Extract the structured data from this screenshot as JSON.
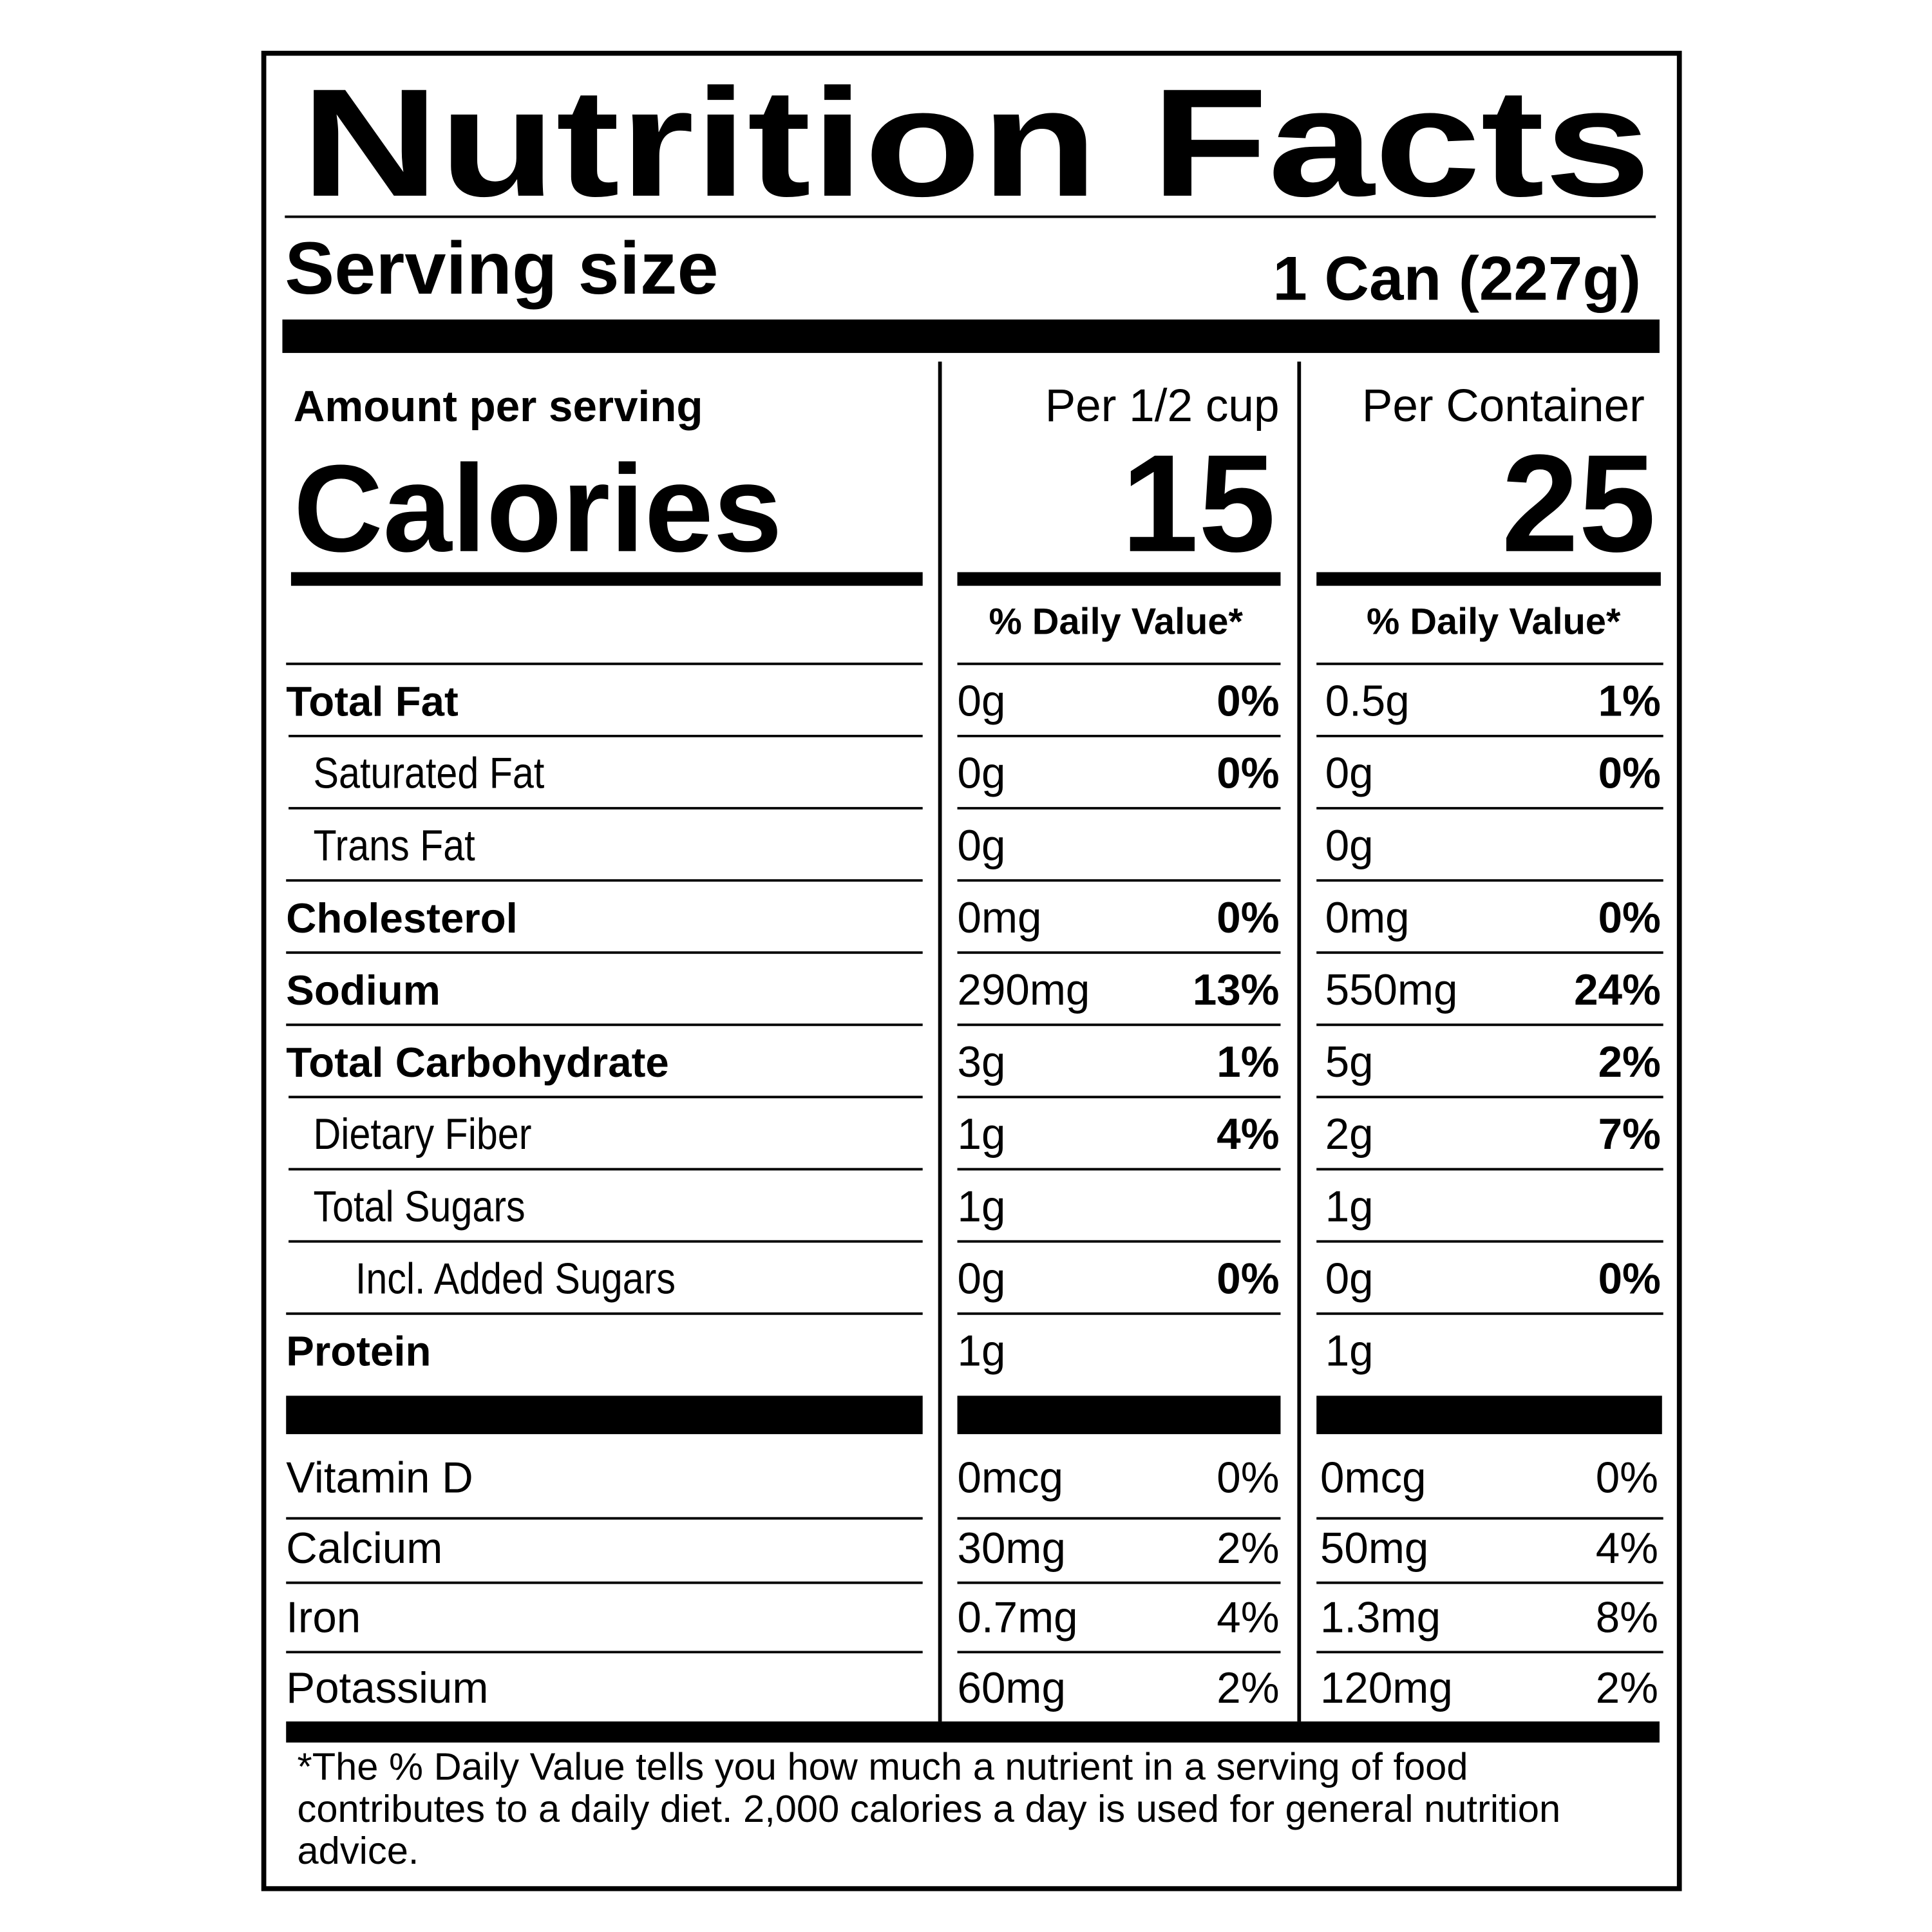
{
  "title": "Nutrition Facts",
  "serving": {
    "label": "Serving size",
    "value": "1 Can (227g)"
  },
  "amount_label": "Amount per serving",
  "calories": {
    "label": "Calories",
    "columns": [
      {
        "header": "Per 1/2 cup",
        "value": "15",
        "dv_header": "% Daily Value*"
      },
      {
        "header": "Per Container",
        "value": "25",
        "dv_header": "% Daily Value*"
      }
    ]
  },
  "nutrients": [
    {
      "name": "Total Fat",
      "level": 0,
      "cells": [
        [
          "0g",
          "0%"
        ],
        [
          "0.5g",
          "1%"
        ]
      ]
    },
    {
      "name": "Saturated Fat",
      "level": 1,
      "cells": [
        [
          "0g",
          "0%"
        ],
        [
          "0g",
          "0%"
        ]
      ]
    },
    {
      "name": "Trans Fat",
      "level": 1,
      "cells": [
        [
          "0g",
          null
        ],
        [
          "0g",
          null
        ]
      ]
    },
    {
      "name": "Cholesterol",
      "level": 0,
      "cells": [
        [
          "0mg",
          "0%"
        ],
        [
          "0mg",
          "0%"
        ]
      ]
    },
    {
      "name": "Sodium",
      "level": 0,
      "cells": [
        [
          "290mg",
          "13%"
        ],
        [
          "550mg",
          "24%"
        ]
      ]
    },
    {
      "name": "Total Carbohydrate",
      "level": 0,
      "cells": [
        [
          "3g",
          "1%"
        ],
        [
          "5g",
          "2%"
        ]
      ]
    },
    {
      "name": "Dietary Fiber",
      "level": 1,
      "cells": [
        [
          "1g",
          "4%"
        ],
        [
          "2g",
          "7%"
        ]
      ]
    },
    {
      "name": "Total Sugars",
      "level": 1,
      "cells": [
        [
          "1g",
          null
        ],
        [
          "1g",
          null
        ]
      ]
    },
    {
      "name": "Incl. Added Sugars",
      "level": 2,
      "cells": [
        [
          "0g",
          "0%"
        ],
        [
          "0g",
          "0%"
        ]
      ]
    },
    {
      "name": "Protein",
      "level": 0,
      "cells": [
        [
          "1g",
          null
        ],
        [
          "1g",
          null
        ]
      ]
    }
  ],
  "vitamins": [
    {
      "name": "Vitamin D",
      "cells": [
        [
          "0mcg",
          "0%"
        ],
        [
          "0mcg",
          "0%"
        ]
      ]
    },
    {
      "name": "Calcium",
      "cells": [
        [
          "30mg",
          "2%"
        ],
        [
          "50mg",
          "4%"
        ]
      ]
    },
    {
      "name": "Iron",
      "cells": [
        [
          "0.7mg",
          "4%"
        ],
        [
          "1.3mg",
          "8%"
        ]
      ]
    },
    {
      "name": "Potassium",
      "cells": [
        [
          "60mg",
          "2%"
        ],
        [
          "120mg",
          "2%"
        ]
      ]
    }
  ],
  "footnote": [
    "*The % Daily Value tells you how much a nutrient in a serving of food",
    "contributes to a daily diet. 2,000 calories a day is used for general nutrition",
    "advice."
  ]
}
